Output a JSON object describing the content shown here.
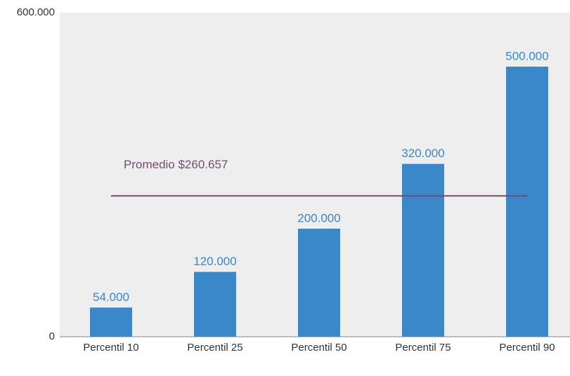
{
  "chart_data": {
    "type": "bar",
    "categories": [
      "Percentil 10",
      "Percentil 25",
      "Percentil 50",
      "Percentil 75",
      "Percentil 90"
    ],
    "values": [
      54000,
      120000,
      200000,
      320000,
      500000
    ],
    "value_labels": [
      "54.000",
      "120.000",
      "200.000",
      "320.000",
      "500.000"
    ],
    "color": "#3a87c9",
    "ylim": [
      0,
      600000
    ],
    "yticks": [
      0,
      {
        "value": 600000,
        "label": "600.000"
      }
    ],
    "annotations": [
      {
        "label": "Promedio $260.657",
        "value": 260657,
        "color": "#7a4a72"
      }
    ]
  }
}
